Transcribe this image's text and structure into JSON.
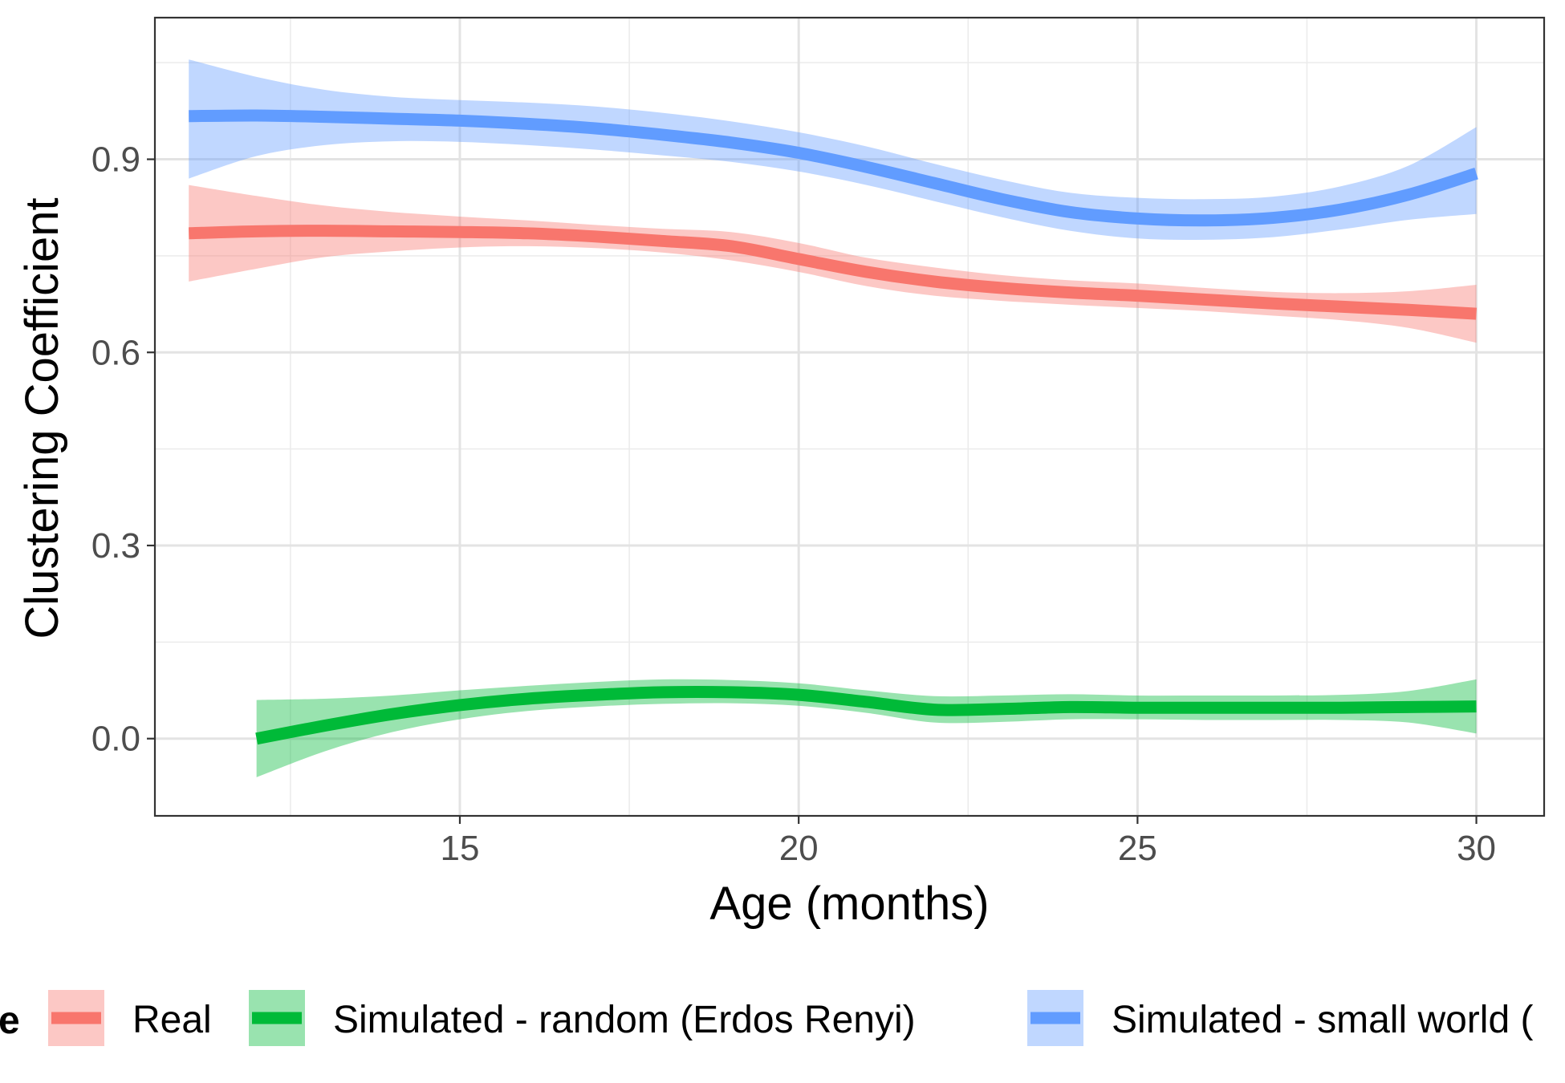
{
  "chart_data": {
    "type": "line",
    "title": "",
    "xlabel": "Age (months)",
    "ylabel": "Clustering Coefficient",
    "xlim": [
      10.5,
      31.0
    ],
    "ylim": [
      -0.12,
      1.12
    ],
    "x_ticks": [
      15,
      20,
      25,
      30
    ],
    "y_ticks": [
      0.0,
      0.3,
      0.6,
      0.9
    ],
    "x_tick_labels": [
      "15",
      "20",
      "25",
      "30"
    ],
    "y_tick_labels": [
      "0.0",
      "0.3",
      "0.6",
      "0.9"
    ],
    "grid": true,
    "legend": {
      "position": "bottom",
      "title": "e",
      "entries": [
        "Real",
        "Simulated - random (Erdos Renyi)",
        "Simulated - small world ("
      ]
    },
    "series": [
      {
        "name": "Real",
        "color": "#F8766D",
        "x": [
          11.0,
          12,
          13,
          14,
          15,
          16,
          17,
          18,
          19,
          20,
          21,
          22,
          23,
          24,
          25,
          26,
          27,
          28,
          29,
          30
        ],
        "y": [
          0.785,
          0.788,
          0.789,
          0.788,
          0.787,
          0.785,
          0.78,
          0.773,
          0.765,
          0.745,
          0.725,
          0.71,
          0.7,
          0.693,
          0.688,
          0.682,
          0.676,
          0.671,
          0.666,
          0.66
        ],
        "lower": [
          0.71,
          0.73,
          0.748,
          0.757,
          0.763,
          0.765,
          0.762,
          0.755,
          0.743,
          0.725,
          0.703,
          0.688,
          0.68,
          0.674,
          0.669,
          0.664,
          0.657,
          0.65,
          0.638,
          0.615
        ],
        "upper": [
          0.86,
          0.843,
          0.828,
          0.818,
          0.811,
          0.805,
          0.798,
          0.792,
          0.787,
          0.77,
          0.747,
          0.732,
          0.72,
          0.712,
          0.707,
          0.7,
          0.694,
          0.692,
          0.695,
          0.705
        ]
      },
      {
        "name": "Simulated - random (Erdos Renyi)",
        "color": "#00BA38",
        "x": [
          12.0,
          13,
          14,
          15,
          16,
          17,
          18,
          19,
          20,
          21,
          22,
          23,
          24,
          25,
          26,
          27,
          28,
          29,
          30
        ],
        "y": [
          0.0,
          0.02,
          0.038,
          0.052,
          0.062,
          0.068,
          0.072,
          0.072,
          0.068,
          0.057,
          0.045,
          0.046,
          0.049,
          0.048,
          0.048,
          0.048,
          0.048,
          0.049,
          0.05
        ],
        "lower": [
          -0.06,
          -0.02,
          0.01,
          0.03,
          0.043,
          0.05,
          0.054,
          0.055,
          0.051,
          0.04,
          0.025,
          0.026,
          0.03,
          0.03,
          0.029,
          0.029,
          0.029,
          0.025,
          0.008
        ],
        "upper": [
          0.06,
          0.062,
          0.067,
          0.075,
          0.082,
          0.088,
          0.092,
          0.091,
          0.086,
          0.075,
          0.066,
          0.067,
          0.069,
          0.067,
          0.067,
          0.067,
          0.068,
          0.074,
          0.092
        ]
      },
      {
        "name": "Simulated - small world (",
        "color": "#619CFF",
        "x": [
          11.0,
          12,
          13,
          14,
          15,
          16,
          17,
          18,
          19,
          20,
          21,
          22,
          23,
          24,
          25,
          26,
          27,
          28,
          29,
          30
        ],
        "y": [
          0.967,
          0.968,
          0.966,
          0.963,
          0.96,
          0.955,
          0.948,
          0.938,
          0.926,
          0.91,
          0.888,
          0.863,
          0.838,
          0.818,
          0.808,
          0.805,
          0.809,
          0.822,
          0.845,
          0.878
        ],
        "lower": [
          0.87,
          0.905,
          0.922,
          0.928,
          0.927,
          0.922,
          0.915,
          0.906,
          0.896,
          0.881,
          0.86,
          0.835,
          0.81,
          0.789,
          0.777,
          0.775,
          0.779,
          0.791,
          0.806,
          0.815
        ],
        "upper": [
          1.055,
          1.028,
          1.008,
          0.997,
          0.992,
          0.988,
          0.982,
          0.972,
          0.959,
          0.942,
          0.92,
          0.893,
          0.868,
          0.848,
          0.84,
          0.838,
          0.842,
          0.858,
          0.89,
          0.95
        ]
      }
    ]
  }
}
